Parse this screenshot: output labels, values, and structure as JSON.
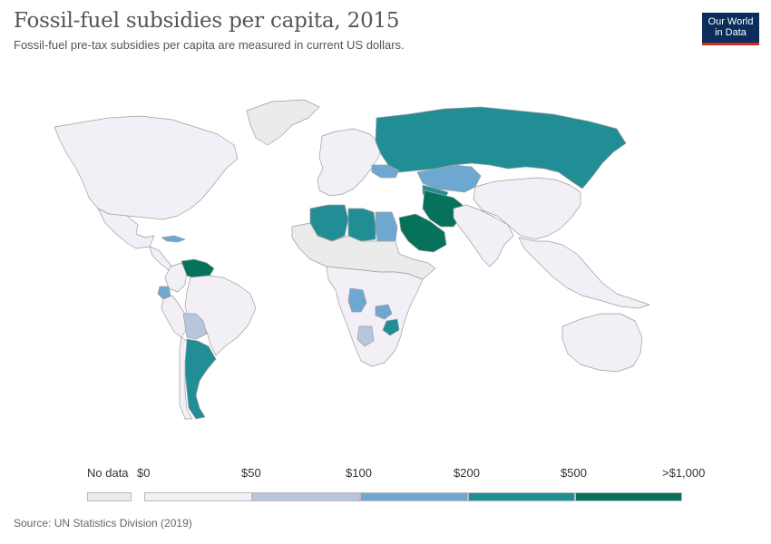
{
  "title": "Fossil-fuel subsidies per capita, 2015",
  "subtitle": "Fossil-fuel pre-tax subsidies per capita are measured in current US dollars.",
  "logo": {
    "line1": "Our World",
    "line2": "in Data"
  },
  "source": "Source: UN Statistics Division (2019)",
  "colors": {
    "nodata": "#ebebeb",
    "bin0": "#f3eff6",
    "bin1": "#b9c4dd",
    "bin2": "#6ea8d0",
    "bin3": "#218e96",
    "bin4": "#06725c",
    "border": "#9e9e9e"
  },
  "legend": {
    "nodata_label": "No data",
    "ticks": [
      "$0",
      "$50",
      "$100",
      "$200",
      "$500",
      ">$1,000"
    ]
  },
  "regions": [
    {
      "name": "Greenland",
      "bin": "nodata"
    },
    {
      "name": "North America",
      "bin": "bin0"
    },
    {
      "name": "Mexico",
      "bin": "bin0"
    },
    {
      "name": "Central America",
      "bin": "bin0"
    },
    {
      "name": "Cuba",
      "bin": "bin2"
    },
    {
      "name": "Colombia",
      "bin": "bin0"
    },
    {
      "name": "Venezuela",
      "bin": "bin4"
    },
    {
      "name": "Ecuador",
      "bin": "bin2"
    },
    {
      "name": "Peru",
      "bin": "bin0"
    },
    {
      "name": "Brazil",
      "bin": "bin0"
    },
    {
      "name": "Bolivia",
      "bin": "bin1"
    },
    {
      "name": "Argentina",
      "bin": "bin3"
    },
    {
      "name": "Chile",
      "bin": "bin0"
    },
    {
      "name": "Europe",
      "bin": "bin0"
    },
    {
      "name": "Russia",
      "bin": "bin3"
    },
    {
      "name": "Kazakhstan",
      "bin": "bin2"
    },
    {
      "name": "Turkmenistan",
      "bin": "bin3"
    },
    {
      "name": "Ukraine",
      "bin": "bin2"
    },
    {
      "name": "Algeria",
      "bin": "bin3"
    },
    {
      "name": "Libya",
      "bin": "bin3"
    },
    {
      "name": "Egypt",
      "bin": "bin2"
    },
    {
      "name": "Saudi Arabia",
      "bin": "bin4"
    },
    {
      "name": "Iran",
      "bin": "bin4"
    },
    {
      "name": "Sahel",
      "bin": "nodata"
    },
    {
      "name": "Africa",
      "bin": "bin0"
    },
    {
      "name": "Angola",
      "bin": "bin2"
    },
    {
      "name": "Zambia",
      "bin": "bin2"
    },
    {
      "name": "Zimbabwe",
      "bin": "bin3"
    },
    {
      "name": "Botswana",
      "bin": "bin1"
    },
    {
      "name": "South Asia",
      "bin": "bin0"
    },
    {
      "name": "China",
      "bin": "bin0"
    },
    {
      "name": "Southeast Asia",
      "bin": "bin0"
    },
    {
      "name": "Australia",
      "bin": "bin0"
    }
  ]
}
